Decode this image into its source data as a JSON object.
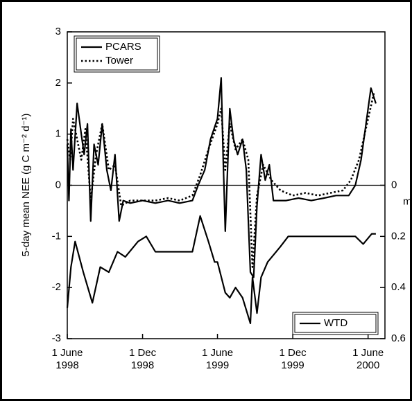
{
  "chart_data": {
    "type": "line",
    "ylabel": "5-day mean NEE (g C m⁻² d⁻¹)",
    "y2label": "m",
    "xlim": [
      "1998-06-01",
      "2000-07-12"
    ],
    "xticks": [
      {
        "value": "1998-06-01",
        "label": "1 June 1998"
      },
      {
        "value": "1998-12-01",
        "label": "1 Dec 1998"
      },
      {
        "value": "1999-06-01",
        "label": "1 June 1999"
      },
      {
        "value": "1999-12-01",
        "label": "1 Dec 1999"
      },
      {
        "value": "2000-06-01",
        "label": "1 June 2000"
      }
    ],
    "ylim": [
      -3,
      3
    ],
    "yticks": [
      -3,
      -2,
      -1,
      0,
      1,
      2,
      3
    ],
    "y2lim": [
      0.6,
      -0.6
    ],
    "y2ticks": [
      0,
      0.2,
      0.4,
      0.6
    ],
    "hline": 0,
    "legend": "upper left",
    "legend2": "lower right",
    "series": [
      {
        "name": "PCARS",
        "color": "#000000",
        "dash": "solid",
        "x": [
          "1998-06-01",
          "1998-06-05",
          "1998-06-10",
          "1998-06-15",
          "1998-06-25",
          "1998-07-05",
          "1998-07-12",
          "1998-07-20",
          "1998-07-28",
          "1998-08-05",
          "1998-08-15",
          "1998-08-25",
          "1998-09-05",
          "1998-09-15",
          "1998-09-25",
          "1998-10-05",
          "1998-10-15",
          "1998-11-01",
          "1998-12-01",
          "1999-01-01",
          "1999-02-01",
          "1999-03-01",
          "1999-04-01",
          "1999-04-15",
          "1999-05-01",
          "1999-05-15",
          "1999-06-01",
          "1999-06-10",
          "1999-06-15",
          "1999-06-20",
          "1999-07-01",
          "1999-07-10",
          "1999-07-20",
          "1999-08-01",
          "1999-08-10",
          "1999-08-20",
          "1999-08-28",
          "1999-09-05",
          "1999-09-15",
          "1999-09-25",
          "1999-10-05",
          "1999-10-15",
          "1999-11-15",
          "1999-12-15",
          "2000-01-15",
          "2000-02-15",
          "2000-03-15",
          "2000-04-15",
          "2000-05-01",
          "2000-05-15",
          "2000-06-01",
          "2000-06-08",
          "2000-06-20"
        ],
        "values": [
          0.8,
          -0.3,
          1.1,
          0.3,
          1.6,
          1.0,
          0.6,
          1.2,
          -0.7,
          0.8,
          0.4,
          1.2,
          0.3,
          -0.1,
          0.6,
          -0.7,
          -0.3,
          -0.35,
          -0.3,
          -0.35,
          -0.3,
          -0.35,
          -0.3,
          0.0,
          0.3,
          0.9,
          1.3,
          2.1,
          0.5,
          -0.9,
          1.5,
          0.9,
          0.6,
          0.9,
          0.3,
          -1.7,
          -1.8,
          -0.4,
          0.6,
          0.1,
          0.4,
          -0.3,
          -0.3,
          -0.25,
          -0.3,
          -0.25,
          -0.2,
          -0.2,
          0.0,
          0.5,
          1.5,
          1.9,
          1.6
        ]
      },
      {
        "name": "Tower",
        "color": "#000000",
        "dash": "dotted",
        "x": [
          "1998-06-01",
          "1998-06-08",
          "1998-06-15",
          "1998-06-25",
          "1998-07-05",
          "1998-07-15",
          "1998-07-28",
          "1998-08-10",
          "1998-08-25",
          "1998-09-10",
          "1998-09-25",
          "1998-10-10",
          "1998-11-01",
          "1998-12-01",
          "1999-01-01",
          "1999-02-01",
          "1999-03-01",
          "1999-04-01",
          "1999-04-20",
          "1999-05-10",
          "1999-06-01",
          "1999-06-10",
          "1999-06-20",
          "1999-07-01",
          "1999-07-15",
          "1999-08-01",
          "1999-08-15",
          "1999-08-25",
          "1999-09-05",
          "1999-09-20",
          "1999-10-10",
          "1999-11-01",
          "1999-12-01",
          "2000-01-01",
          "2000-02-01",
          "2000-03-01",
          "2000-04-01",
          "2000-04-20",
          "2000-05-10",
          "2000-06-01",
          "2000-06-15"
        ],
        "values": [
          0.9,
          0.5,
          1.3,
          0.9,
          0.5,
          1.1,
          -0.3,
          0.6,
          1.2,
          0.3,
          0.4,
          -0.4,
          -0.3,
          -0.3,
          -0.3,
          -0.25,
          -0.3,
          -0.2,
          0.2,
          0.7,
          1.2,
          1.5,
          0.3,
          1.2,
          0.7,
          0.9,
          0.5,
          -1.6,
          -0.2,
          0.4,
          0.1,
          -0.1,
          -0.2,
          -0.15,
          -0.2,
          -0.15,
          -0.1,
          0.1,
          0.5,
          1.3,
          1.8
        ]
      },
      {
        "name": "WTD",
        "color": "#000000",
        "dash": "solid",
        "axis": "y2",
        "x": [
          "1998-06-01",
          "1998-06-10",
          "1998-06-20",
          "1998-07-10",
          "1998-08-01",
          "1998-08-20",
          "1998-09-10",
          "1998-10-01",
          "1998-10-20",
          "1998-11-20",
          "1998-12-10",
          "1999-01-01",
          "1999-02-01",
          "1999-03-01",
          "1999-04-01",
          "1999-04-20",
          "1999-05-10",
          "1999-05-25",
          "1999-06-01",
          "1999-06-20",
          "1999-07-01",
          "1999-07-15",
          "1999-08-01",
          "1999-08-20",
          "1999-08-25",
          "1999-09-05",
          "1999-09-15",
          "1999-10-01",
          "1999-11-01",
          "1999-11-20",
          "1999-12-15",
          "2000-02-01",
          "2000-04-01",
          "2000-05-01",
          "2000-05-20",
          "2000-06-10",
          "2000-06-20"
        ],
        "values": [
          0.48,
          0.32,
          0.22,
          0.34,
          0.46,
          0.32,
          0.34,
          0.26,
          0.28,
          0.22,
          0.2,
          0.26,
          0.26,
          0.26,
          0.26,
          0.12,
          0.22,
          0.3,
          0.3,
          0.42,
          0.44,
          0.4,
          0.44,
          0.54,
          0.36,
          0.5,
          0.36,
          0.3,
          0.24,
          0.2,
          0.2,
          0.2,
          0.2,
          0.2,
          0.23,
          0.19,
          0.19
        ]
      }
    ]
  }
}
